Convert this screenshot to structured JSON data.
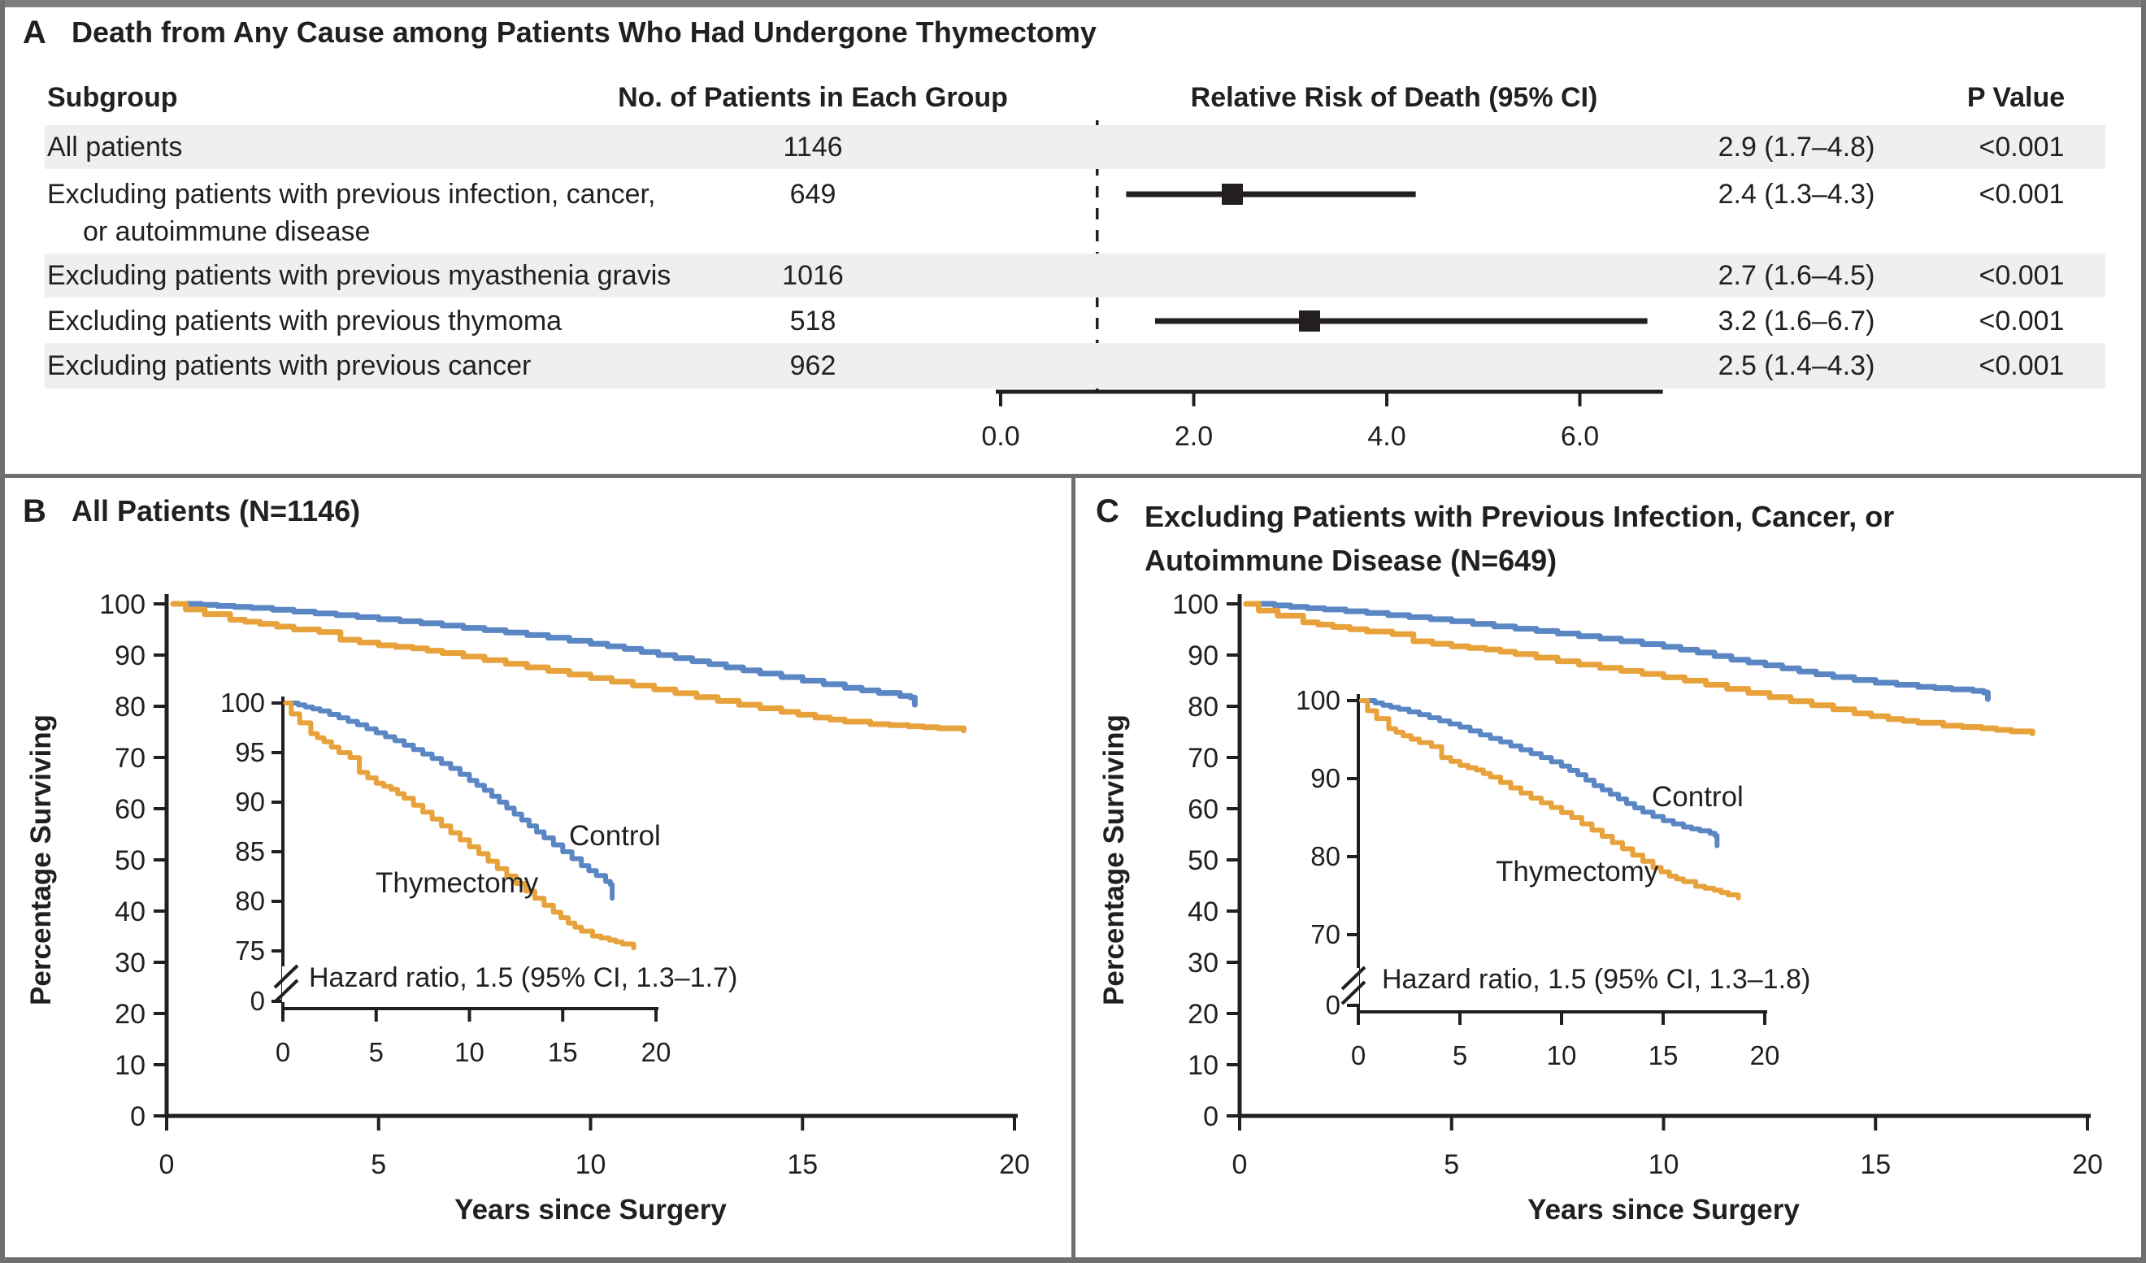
{
  "figure": {
    "panels": {
      "a": {
        "label": "A",
        "title": "Death from Any Cause among Patients Who Had Undergone Thymectomy"
      },
      "b": {
        "label": "B",
        "title": "All Patients (N=1146)"
      },
      "c": {
        "label": "C",
        "title": "Excluding Patients with Previous Infection, Cancer, or Autoimmune Disease (N=649)"
      }
    }
  },
  "colors": {
    "control": "#5B86C4",
    "thymectomy": "#E8A23C",
    "row_shade": "#EFEFEF",
    "ink": "#231F20",
    "border": "#6F6F6F"
  },
  "chart_data": [
    {
      "type": "forest",
      "panel": "A",
      "title": "Death from Any Cause among Patients Who Had Undergone Thymectomy",
      "headers": [
        "Subgroup",
        "No. of Patients in Each Group",
        "Relative Risk of Death (95% CI)",
        "P Value"
      ],
      "axis_values": [
        0,
        2,
        4,
        6
      ],
      "axis_tick_labels": [
        "0.0",
        "2.0",
        "4.0",
        "6.0"
      ],
      "xlim": [
        0,
        6.86
      ],
      "reference_value": 1.0,
      "rows": [
        {
          "subgroup": "All patients",
          "subgroup_line2": "",
          "n": "1146",
          "rr": 2.9,
          "low": 1.7,
          "high": 4.8,
          "estimate_text": "2.9 (1.7–4.8)",
          "p_value": "<0.001",
          "shaded": true
        },
        {
          "subgroup": "Excluding patients with previous infection, cancer,",
          "subgroup_line2": "or autoimmune disease",
          "n": "649",
          "rr": 2.4,
          "low": 1.3,
          "high": 4.3,
          "estimate_text": "2.4 (1.3–4.3)",
          "p_value": "<0.001",
          "shaded": false
        },
        {
          "subgroup": "Excluding patients with previous myasthenia gravis",
          "subgroup_line2": "",
          "n": "1016",
          "rr": 2.7,
          "low": 1.6,
          "high": 4.5,
          "estimate_text": "2.7 (1.6–4.5)",
          "p_value": "<0.001",
          "shaded": true
        },
        {
          "subgroup": "Excluding patients with previous thymoma",
          "subgroup_line2": "",
          "n": "518",
          "rr": 3.2,
          "low": 1.6,
          "high": 6.7,
          "estimate_text": "3.2 (1.6–6.7)",
          "p_value": "<0.001",
          "shaded": false
        },
        {
          "subgroup": "Excluding patients with previous cancer",
          "subgroup_line2": "",
          "n": "962",
          "rr": 2.5,
          "low": 1.4,
          "high": 4.3,
          "estimate_text": "2.5 (1.4–4.3)",
          "p_value": "<0.001",
          "shaded": true
        }
      ]
    },
    {
      "type": "line",
      "panel": "B",
      "title": "All Patients (N=1146)",
      "xlabel": "Years since Surgery",
      "ylabel": "Percentage Surviving",
      "xlim": [
        0,
        20
      ],
      "ylim": [
        0,
        100
      ],
      "xticks": [
        0,
        5,
        10,
        15,
        20
      ],
      "yticks": [
        100,
        90,
        80,
        70,
        60,
        50,
        40,
        30,
        20,
        10,
        0
      ],
      "series": [
        {
          "name": "Control",
          "color_key": "control",
          "points": [
            [
              0.45,
              100
            ],
            [
              1.2,
              99.6
            ],
            [
              2,
              99.2
            ],
            [
              3,
              98.5
            ],
            [
              4,
              97.8
            ],
            [
              5,
              97.0
            ],
            [
              6,
              96.2
            ],
            [
              7,
              95.3
            ],
            [
              8,
              94.4
            ],
            [
              9,
              93.4
            ],
            [
              10,
              92.2
            ],
            [
              10.8,
              91.2
            ],
            [
              11.6,
              90.0
            ],
            [
              12.4,
              88.8
            ],
            [
              13.2,
              87.6
            ],
            [
              14,
              86.4
            ],
            [
              15,
              85.0
            ],
            [
              16,
              83.6
            ],
            [
              16.8,
              82.6
            ],
            [
              17.3,
              82.0
            ],
            [
              17.55,
              81.7
            ],
            [
              17.65,
              80.3
            ]
          ]
        },
        {
          "name": "Thymectomy",
          "color_key": "thymectomy",
          "points": [
            [
              0.15,
              100
            ],
            [
              0.45,
              98.9
            ],
            [
              0.9,
              98.0
            ],
            [
              1.5,
              96.9
            ],
            [
              2.2,
              96.1
            ],
            [
              3,
              95.0
            ],
            [
              3.6,
              94.5
            ],
            [
              4.1,
              93.0
            ],
            [
              5,
              91.9
            ],
            [
              5.8,
              91.3
            ],
            [
              6.5,
              90.4
            ],
            [
              7.5,
              89.0
            ],
            [
              8.5,
              87.6
            ],
            [
              9.5,
              86.2
            ],
            [
              10.5,
              84.8
            ],
            [
              11.5,
              83.3
            ],
            [
              12.5,
              81.8
            ],
            [
              13.5,
              80.3
            ],
            [
              14.5,
              78.9
            ],
            [
              15.3,
              77.8
            ],
            [
              16,
              77.0
            ],
            [
              16.6,
              76.5
            ],
            [
              17.5,
              76.1
            ],
            [
              18.2,
              75.7
            ],
            [
              18.8,
              75.3
            ]
          ]
        }
      ],
      "inset": {
        "ylim": [
          75,
          100
        ],
        "yticks": [
          100,
          95,
          90,
          85,
          80,
          75
        ],
        "zero_tick": "0",
        "xticks": [
          0,
          5,
          10,
          15,
          20
        ],
        "annotation": "Hazard ratio, 1.5 (95% CI, 1.3–1.7)"
      }
    },
    {
      "type": "line",
      "panel": "C",
      "title": "Excluding Patients with Previous Infection, Cancer, or Autoimmune Disease (N=649)",
      "xlabel": "Years since Surgery",
      "ylabel": "Percentage Surviving",
      "xlim": [
        0,
        20
      ],
      "ylim": [
        0,
        100
      ],
      "xticks": [
        0,
        5,
        10,
        15,
        20
      ],
      "yticks": [
        100,
        90,
        80,
        70,
        60,
        50,
        40,
        30,
        20,
        10,
        0
      ],
      "series": [
        {
          "name": "Control",
          "color_key": "control",
          "points": [
            [
              0.45,
              100
            ],
            [
              1.2,
              99.4
            ],
            [
              2,
              98.9
            ],
            [
              3,
              98.2
            ],
            [
              4,
              97.4
            ],
            [
              5,
              96.6
            ],
            [
              6,
              95.6
            ],
            [
              7,
              94.7
            ],
            [
              8,
              93.7
            ],
            [
              9,
              92.7
            ],
            [
              10,
              91.6
            ],
            [
              10.8,
              90.5
            ],
            [
              11.6,
              89.1
            ],
            [
              12.4,
              88.0
            ],
            [
              13.2,
              86.8
            ],
            [
              14,
              85.7
            ],
            [
              15,
              84.6
            ],
            [
              16,
              83.8
            ],
            [
              16.8,
              83.3
            ],
            [
              17.3,
              83.0
            ],
            [
              17.55,
              82.7
            ],
            [
              17.65,
              81.4
            ]
          ]
        },
        {
          "name": "Thymectomy",
          "color_key": "thymectomy",
          "points": [
            [
              0.15,
              100
            ],
            [
              0.45,
              98.7
            ],
            [
              0.9,
              97.7
            ],
            [
              1.5,
              96.4
            ],
            [
              2.2,
              95.5
            ],
            [
              3,
              94.6
            ],
            [
              3.6,
              94.1
            ],
            [
              4.1,
              92.7
            ],
            [
              5,
              91.7
            ],
            [
              5.8,
              91.1
            ],
            [
              6.5,
              90.2
            ],
            [
              7.5,
              88.8
            ],
            [
              8.5,
              87.5
            ],
            [
              9.5,
              86.3
            ],
            [
              10.5,
              85.0
            ],
            [
              11.5,
              83.4
            ],
            [
              12.5,
              81.8
            ],
            [
              13.5,
              80.2
            ],
            [
              14.5,
              78.6
            ],
            [
              15.3,
              77.5
            ],
            [
              16,
              76.8
            ],
            [
              16.6,
              76.2
            ],
            [
              17.5,
              75.7
            ],
            [
              18.2,
              75.1
            ],
            [
              18.7,
              74.7
            ]
          ]
        }
      ],
      "inset": {
        "ylim": [
          70,
          100
        ],
        "yticks": [
          100,
          90,
          80,
          70
        ],
        "zero_tick": "0",
        "xticks": [
          0,
          5,
          10,
          15,
          20
        ],
        "annotation": "Hazard ratio, 1.5 (95% CI, 1.3–1.8)"
      }
    }
  ]
}
